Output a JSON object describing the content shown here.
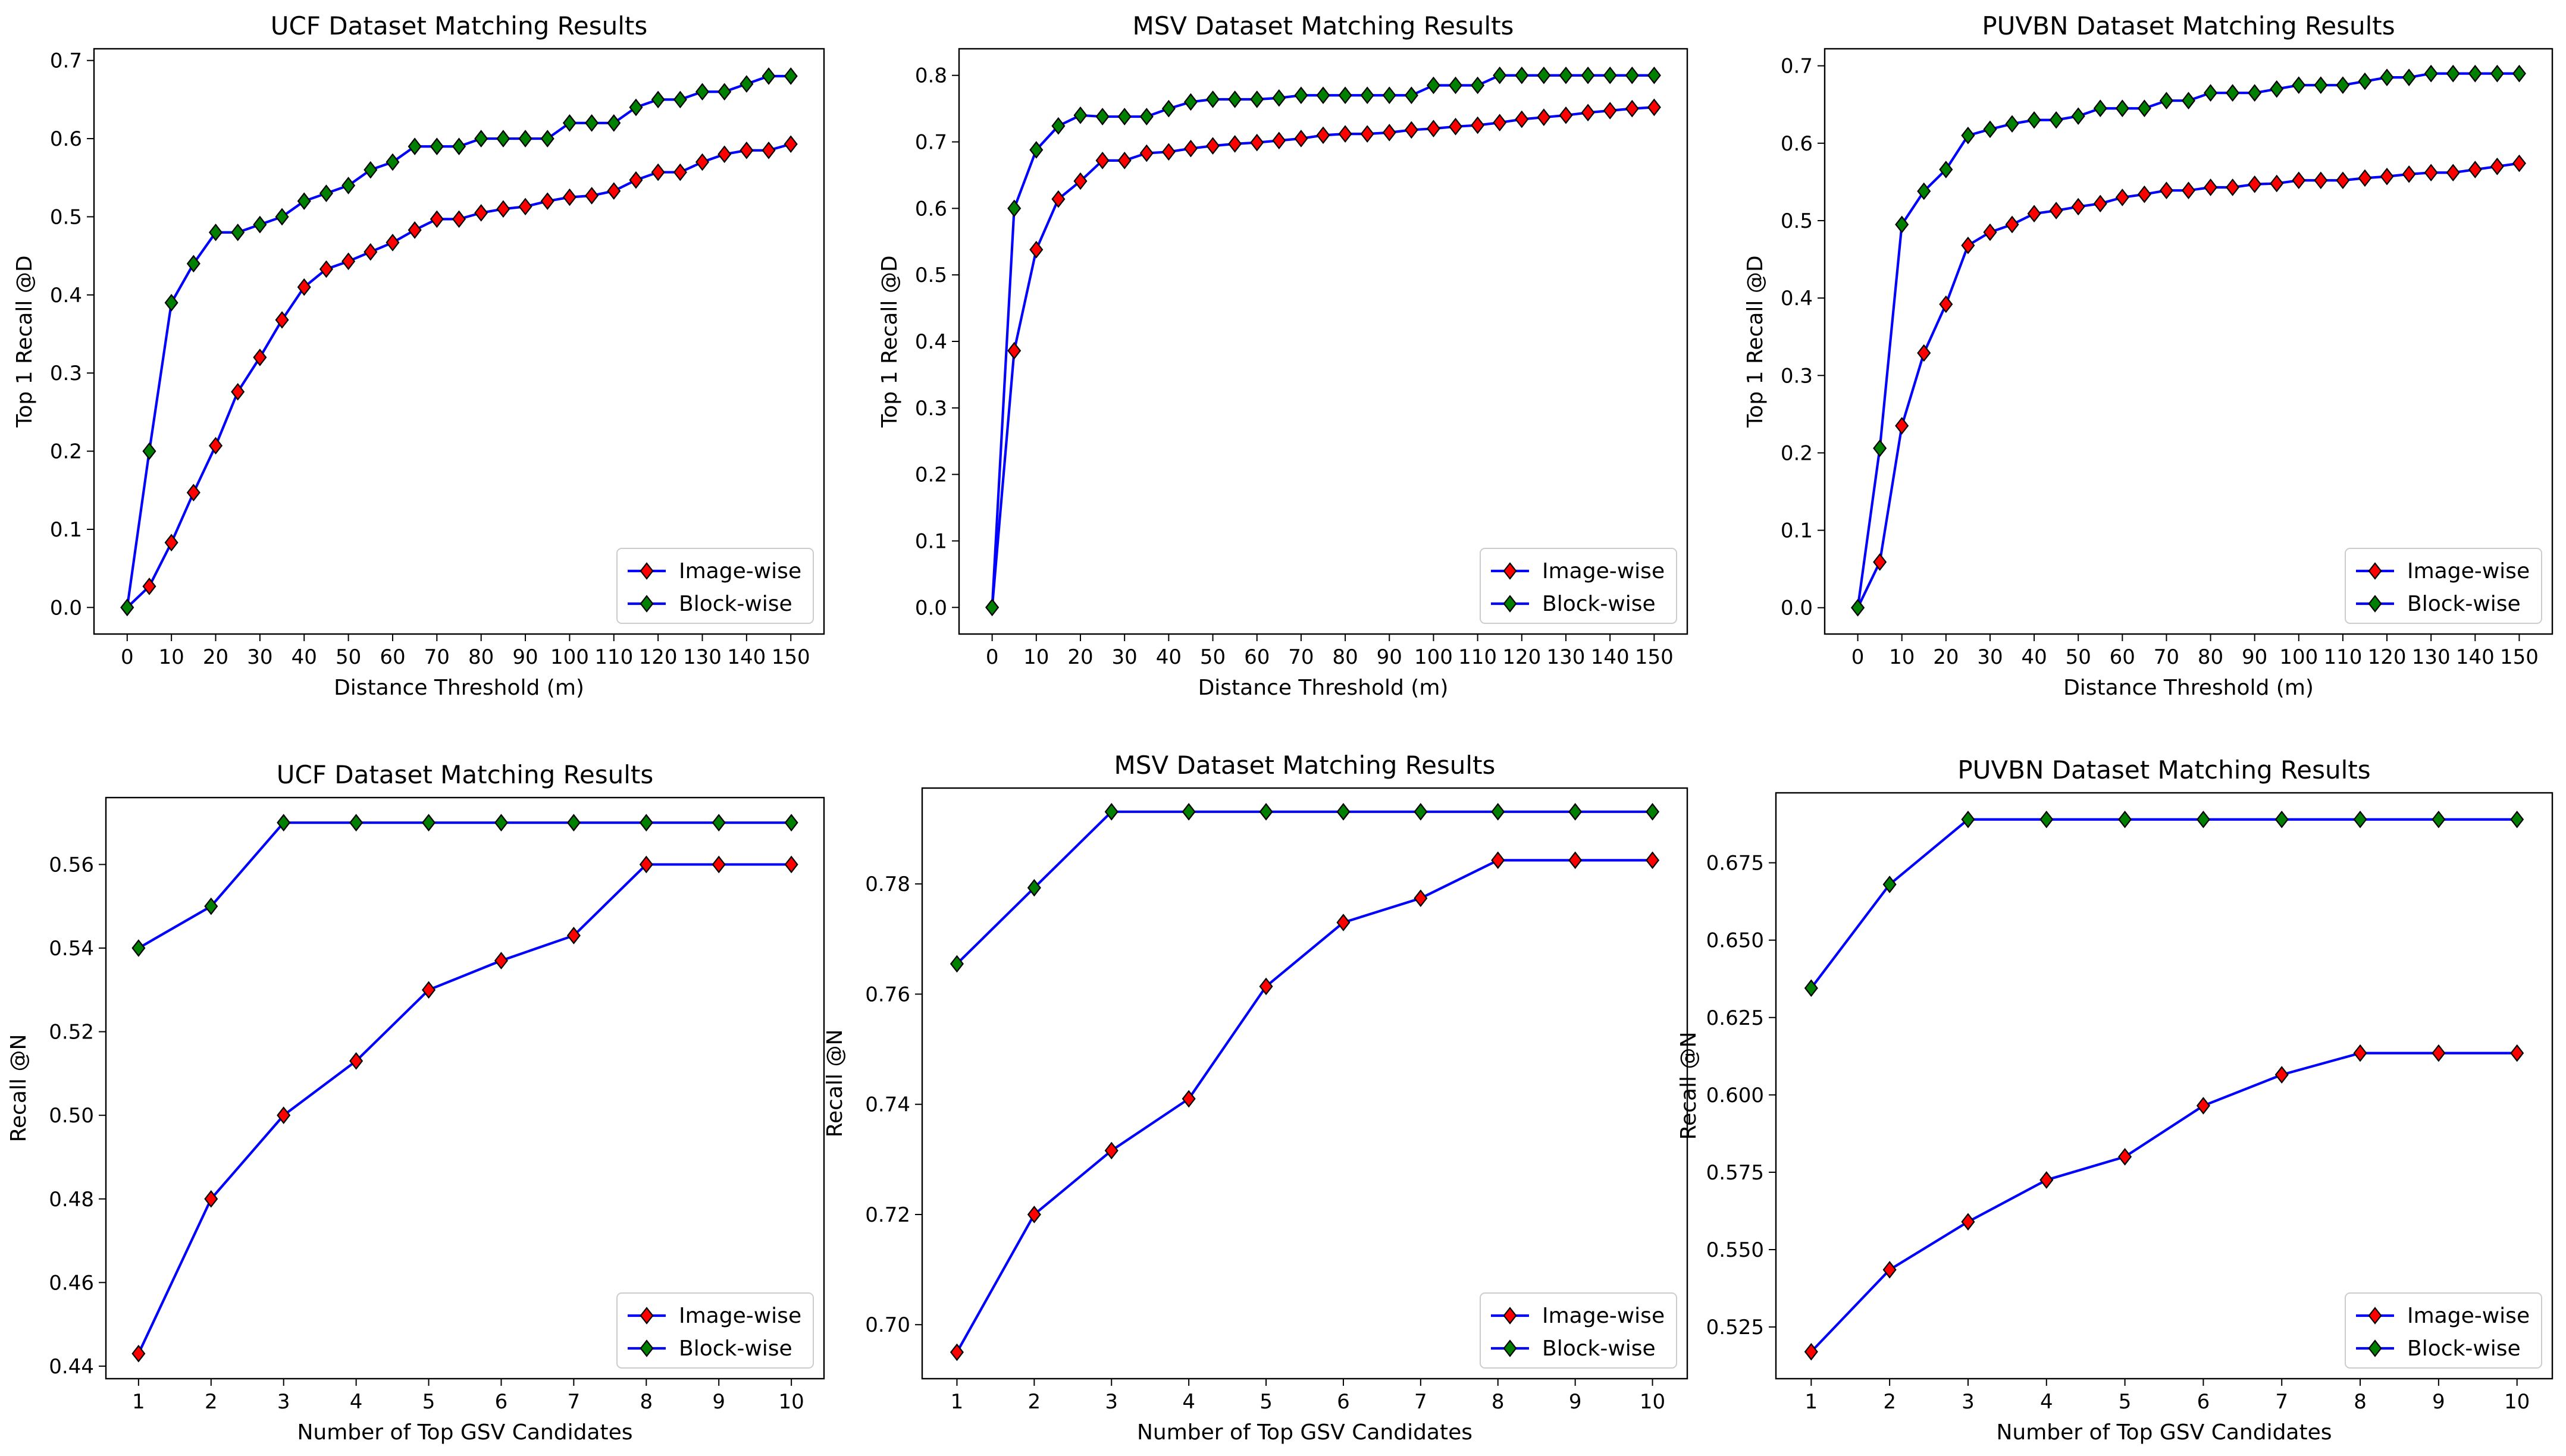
{
  "colors": {
    "line": "#0000ff",
    "image_marker": "#ff0000",
    "block_marker": "#008000",
    "marker_edge": "#000000"
  },
  "chart_data": [
    {
      "type": "line",
      "title": "UCF Dataset Matching Results",
      "xlabel": "Distance Threshold (m)",
      "ylabel": "Top 1 Recall @D",
      "xticks": [
        0,
        10,
        20,
        30,
        40,
        50,
        60,
        70,
        80,
        90,
        100,
        110,
        120,
        130,
        140,
        150
      ],
      "xtick_labels": [
        "0",
        "10",
        "20",
        "30",
        "40",
        "50",
        "60",
        "70",
        "80",
        "90",
        "100",
        "110",
        "120",
        "130",
        "140",
        "150"
      ],
      "yticks": [
        0.0,
        0.1,
        0.2,
        0.3,
        0.4,
        0.5,
        0.6,
        0.7
      ],
      "ytick_labels": [
        "0.0",
        "0.1",
        "0.2",
        "0.3",
        "0.4",
        "0.5",
        "0.6",
        "0.7"
      ],
      "xlim": [
        -7.5,
        157.5
      ],
      "ylim": [
        -0.034,
        0.715
      ],
      "legend_position": "lower-right",
      "x": [
        0,
        5,
        10,
        15,
        20,
        25,
        30,
        35,
        40,
        45,
        50,
        55,
        60,
        65,
        70,
        75,
        80,
        85,
        90,
        95,
        100,
        105,
        110,
        115,
        120,
        125,
        130,
        135,
        140,
        145,
        150
      ],
      "series": [
        {
          "name": "Image-wise",
          "values": [
            0.0,
            0.027,
            0.083,
            0.147,
            0.207,
            0.276,
            0.32,
            0.368,
            0.41,
            0.433,
            0.443,
            0.455,
            0.467,
            0.483,
            0.497,
            0.497,
            0.505,
            0.51,
            0.513,
            0.52,
            0.525,
            0.527,
            0.533,
            0.547,
            0.557,
            0.557,
            0.57,
            0.58,
            0.585,
            0.585,
            0.593
          ]
        },
        {
          "name": "Block-wise",
          "values": [
            0.0,
            0.2,
            0.39,
            0.44,
            0.48,
            0.48,
            0.49,
            0.5,
            0.52,
            0.53,
            0.54,
            0.56,
            0.57,
            0.59,
            0.59,
            0.59,
            0.6,
            0.6,
            0.6,
            0.6,
            0.62,
            0.62,
            0.62,
            0.64,
            0.65,
            0.65,
            0.66,
            0.66,
            0.67,
            0.68,
            0.68
          ]
        }
      ]
    },
    {
      "type": "line",
      "title": "MSV Dataset Matching Results",
      "xlabel": "Distance Threshold (m)",
      "ylabel": "Top 1 Recall @D",
      "xticks": [
        0,
        10,
        20,
        30,
        40,
        50,
        60,
        70,
        80,
        90,
        100,
        110,
        120,
        130,
        140,
        150
      ],
      "xtick_labels": [
        "0",
        "10",
        "20",
        "30",
        "40",
        "50",
        "60",
        "70",
        "80",
        "90",
        "100",
        "110",
        "120",
        "130",
        "140",
        "150"
      ],
      "yticks": [
        0.0,
        0.1,
        0.2,
        0.3,
        0.4,
        0.5,
        0.6,
        0.7,
        0.8
      ],
      "ytick_labels": [
        "0.0",
        "0.1",
        "0.2",
        "0.3",
        "0.4",
        "0.5",
        "0.6",
        "0.7",
        "0.8"
      ],
      "xlim": [
        -7.5,
        157.5
      ],
      "ylim": [
        -0.04,
        0.84
      ],
      "legend_position": "lower-right",
      "x": [
        0,
        5,
        10,
        15,
        20,
        25,
        30,
        35,
        40,
        45,
        50,
        55,
        60,
        65,
        70,
        75,
        80,
        85,
        90,
        95,
        100,
        105,
        110,
        115,
        120,
        125,
        130,
        135,
        140,
        145,
        150
      ],
      "series": [
        {
          "name": "Image-wise",
          "values": [
            0.0,
            0.386,
            0.538,
            0.614,
            0.641,
            0.672,
            0.672,
            0.683,
            0.685,
            0.69,
            0.694,
            0.697,
            0.699,
            0.702,
            0.705,
            0.71,
            0.712,
            0.712,
            0.714,
            0.718,
            0.72,
            0.723,
            0.725,
            0.729,
            0.734,
            0.737,
            0.74,
            0.744,
            0.747,
            0.75,
            0.752
          ]
        },
        {
          "name": "Block-wise",
          "values": [
            0.0,
            0.6,
            0.688,
            0.724,
            0.74,
            0.738,
            0.738,
            0.738,
            0.75,
            0.76,
            0.764,
            0.764,
            0.764,
            0.766,
            0.77,
            0.77,
            0.77,
            0.77,
            0.77,
            0.77,
            0.785,
            0.785,
            0.785,
            0.8,
            0.8,
            0.8,
            0.8,
            0.8,
            0.8,
            0.8,
            0.8
          ]
        }
      ]
    },
    {
      "type": "line",
      "title": "PUVBN Dataset Matching Results",
      "xlabel": "Distance Threshold (m)",
      "ylabel": "Top 1 Recall @D",
      "xticks": [
        0,
        10,
        20,
        30,
        40,
        50,
        60,
        70,
        80,
        90,
        100,
        110,
        120,
        130,
        140,
        150
      ],
      "xtick_labels": [
        "0",
        "10",
        "20",
        "30",
        "40",
        "50",
        "60",
        "70",
        "80",
        "90",
        "100",
        "110",
        "120",
        "130",
        "140",
        "150"
      ],
      "yticks": [
        0.0,
        0.1,
        0.2,
        0.3,
        0.4,
        0.5,
        0.6,
        0.7
      ],
      "ytick_labels": [
        "0.0",
        "0.1",
        "0.2",
        "0.3",
        "0.4",
        "0.5",
        "0.6",
        "0.7"
      ],
      "xlim": [
        -7.5,
        157.5
      ],
      "ylim": [
        -0.034,
        0.722
      ],
      "legend_position": "lower-right",
      "x": [
        0,
        5,
        10,
        15,
        20,
        25,
        30,
        35,
        40,
        45,
        50,
        55,
        60,
        65,
        70,
        75,
        80,
        85,
        90,
        95,
        100,
        105,
        110,
        115,
        120,
        125,
        130,
        135,
        140,
        145,
        150
      ],
      "series": [
        {
          "name": "Image-wise",
          "values": [
            0.0,
            0.059,
            0.235,
            0.329,
            0.392,
            0.468,
            0.485,
            0.495,
            0.509,
            0.513,
            0.518,
            0.522,
            0.53,
            0.534,
            0.539,
            0.539,
            0.543,
            0.543,
            0.547,
            0.548,
            0.552,
            0.552,
            0.552,
            0.555,
            0.557,
            0.56,
            0.562,
            0.562,
            0.566,
            0.57,
            0.574
          ]
        },
        {
          "name": "Block-wise",
          "values": [
            0.0,
            0.206,
            0.495,
            0.538,
            0.566,
            0.61,
            0.618,
            0.625,
            0.63,
            0.63,
            0.635,
            0.645,
            0.645,
            0.645,
            0.655,
            0.655,
            0.665,
            0.665,
            0.665,
            0.67,
            0.675,
            0.675,
            0.675,
            0.68,
            0.685,
            0.685,
            0.69,
            0.69,
            0.69,
            0.69,
            0.69
          ]
        }
      ]
    },
    {
      "type": "line",
      "title": "UCF Dataset Matching Results",
      "xlabel": "Number of Top GSV Candidates",
      "ylabel": "Recall @N",
      "xticks": [
        1,
        2,
        3,
        4,
        5,
        6,
        7,
        8,
        9,
        10
      ],
      "xtick_labels": [
        "1",
        "2",
        "3",
        "4",
        "5",
        "6",
        "7",
        "8",
        "9",
        "10"
      ],
      "yticks": [
        0.44,
        0.46,
        0.48,
        0.5,
        0.52,
        0.54,
        0.56
      ],
      "ytick_labels": [
        "0.44",
        "0.46",
        "0.48",
        "0.50",
        "0.52",
        "0.54",
        "0.56"
      ],
      "xlim": [
        0.55,
        10.45
      ],
      "ylim": [
        0.437,
        0.576
      ],
      "legend_position": "lower-right",
      "x": [
        1,
        2,
        3,
        4,
        5,
        6,
        7,
        8,
        9,
        10
      ],
      "series": [
        {
          "name": "Image-wise",
          "values": [
            0.443,
            0.48,
            0.5,
            0.513,
            0.53,
            0.537,
            0.543,
            0.56,
            0.56,
            0.56
          ]
        },
        {
          "name": "Block-wise",
          "values": [
            0.54,
            0.55,
            0.57,
            0.57,
            0.57,
            0.57,
            0.57,
            0.57,
            0.57,
            0.57
          ]
        }
      ]
    },
    {
      "type": "line",
      "title": "MSV Dataset Matching Results",
      "xlabel": "Number of Top GSV Candidates",
      "ylabel": "Recall @N",
      "xticks": [
        1,
        2,
        3,
        4,
        5,
        6,
        7,
        8,
        9,
        10
      ],
      "xtick_labels": [
        "1",
        "2",
        "3",
        "4",
        "5",
        "6",
        "7",
        "8",
        "9",
        "10"
      ],
      "yticks": [
        0.7,
        0.72,
        0.74,
        0.76,
        0.78
      ],
      "ytick_labels": [
        "0.70",
        "0.72",
        "0.74",
        "0.76",
        "0.78"
      ],
      "xlim": [
        0.55,
        10.45
      ],
      "ylim": [
        0.6902,
        0.7974
      ],
      "legend_position": "lower-right",
      "x": [
        1,
        2,
        3,
        4,
        5,
        6,
        7,
        8,
        9,
        10
      ],
      "series": [
        {
          "name": "Image-wise",
          "values": [
            0.695,
            0.72,
            0.7316,
            0.741,
            0.7614,
            0.773,
            0.7774,
            0.7843,
            0.7843,
            0.7843
          ]
        },
        {
          "name": "Block-wise",
          "values": [
            0.7655,
            0.7793,
            0.7931,
            0.7931,
            0.7931,
            0.7931,
            0.7931,
            0.7931,
            0.7931,
            0.7931
          ]
        }
      ]
    },
    {
      "type": "line",
      "title": "PUVBN Dataset Matching Results",
      "xlabel": "Number of Top GSV Candidates",
      "ylabel": "Recall @N",
      "xticks": [
        1,
        2,
        3,
        4,
        5,
        6,
        7,
        8,
        9,
        10
      ],
      "xtick_labels": [
        "1",
        "2",
        "3",
        "4",
        "5",
        "6",
        "7",
        "8",
        "9",
        "10"
      ],
      "yticks": [
        0.525,
        0.55,
        0.575,
        0.6,
        0.625,
        0.65,
        0.675
      ],
      "ytick_labels": [
        "0.525",
        "0.550",
        "0.575",
        "0.600",
        "0.625",
        "0.650",
        "0.675"
      ],
      "xlim": [
        0.55,
        10.45
      ],
      "ylim": [
        0.5083,
        0.6976
      ],
      "legend_position": "lower-right",
      "x": [
        1,
        2,
        3,
        4,
        5,
        6,
        7,
        8,
        9,
        10
      ],
      "series": [
        {
          "name": "Image-wise",
          "values": [
            0.517,
            0.5435,
            0.559,
            0.5725,
            0.58,
            0.5965,
            0.6065,
            0.6135,
            0.6135,
            0.6135
          ]
        },
        {
          "name": "Block-wise",
          "values": [
            0.6345,
            0.668,
            0.689,
            0.689,
            0.689,
            0.689,
            0.689,
            0.689,
            0.689,
            0.689
          ]
        }
      ]
    }
  ]
}
